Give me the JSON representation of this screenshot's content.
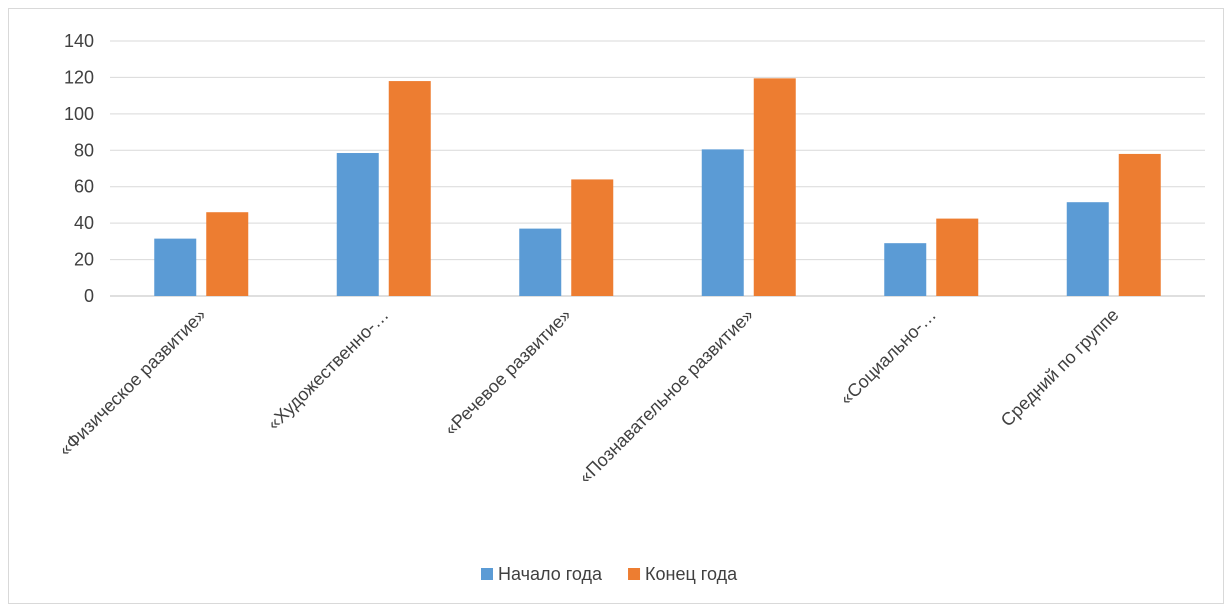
{
  "chart_data": {
    "type": "bar",
    "categories": [
      "«Физическое развитие»",
      "«Художественно-…",
      "«Речевое развитие»",
      "«Познавательное развитие»",
      "«Социально-…",
      "Средний по группе"
    ],
    "series": [
      {
        "name": "Начало года",
        "color": "#5b9bd5",
        "values": [
          31.5,
          78.5,
          37,
          80.5,
          29,
          51.5
        ]
      },
      {
        "name": "Конец года",
        "color": "#ed7d31",
        "values": [
          46,
          118,
          64,
          119.5,
          42.5,
          78
        ]
      }
    ],
    "ylim": [
      0,
      140
    ],
    "yticks": [
      "0",
      "20",
      "40",
      "60",
      "80",
      "100",
      "120",
      "140"
    ],
    "grid": true,
    "legend_position": "bottom",
    "title": "",
    "xlabel": "",
    "ylabel": ""
  }
}
